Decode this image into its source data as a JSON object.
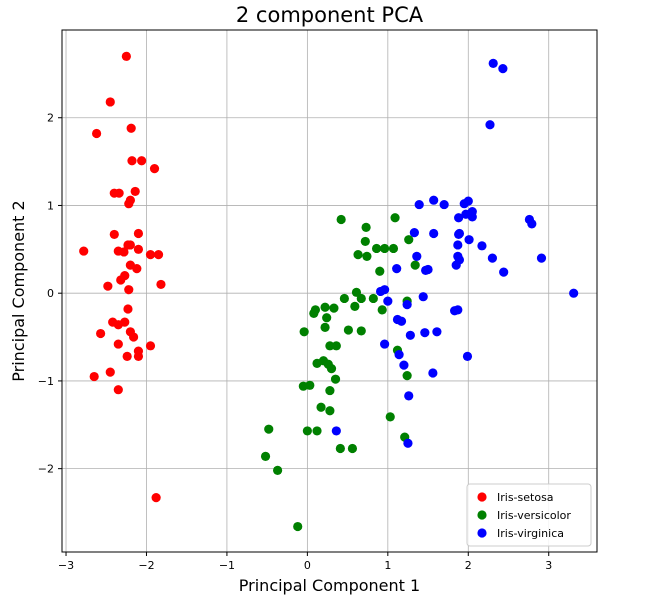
{
  "chart_data": {
    "type": "scatter",
    "title": "2 component PCA",
    "xlabel": "Principal Component 1",
    "ylabel": "Principal Component 2",
    "xlim": [
      -3.05,
      3.6
    ],
    "ylim": [
      -2.95,
      3.0
    ],
    "xticks": [
      -3,
      -2,
      -1,
      0,
      1,
      2,
      3
    ],
    "yticks": [
      -2,
      -1,
      0,
      1,
      2
    ],
    "grid": true,
    "legend_position": "lower-right",
    "series": [
      {
        "name": "Iris-setosa",
        "color": "#ff0000",
        "points": [
          [
            -2.25,
            2.7
          ],
          [
            -2.45,
            2.18
          ],
          [
            -2.62,
            1.82
          ],
          [
            -2.19,
            1.88
          ],
          [
            -2.18,
            1.51
          ],
          [
            -2.06,
            1.51
          ],
          [
            -1.9,
            1.42
          ],
          [
            -2.4,
            1.14
          ],
          [
            -2.34,
            1.14
          ],
          [
            -2.14,
            1.16
          ],
          [
            -2.2,
            1.06
          ],
          [
            -2.22,
            1.02
          ],
          [
            -2.1,
            0.68
          ],
          [
            -2.4,
            0.67
          ],
          [
            -2.23,
            0.55
          ],
          [
            -2.2,
            0.55
          ],
          [
            -2.1,
            0.5
          ],
          [
            -2.28,
            0.47
          ],
          [
            -2.35,
            0.48
          ],
          [
            -1.95,
            0.44
          ],
          [
            -1.85,
            0.44
          ],
          [
            -2.78,
            0.48
          ],
          [
            -2.2,
            0.32
          ],
          [
            -2.12,
            0.28
          ],
          [
            -2.27,
            0.2
          ],
          [
            -2.32,
            0.15
          ],
          [
            -2.48,
            0.08
          ],
          [
            -2.22,
            0.04
          ],
          [
            -1.82,
            0.1
          ],
          [
            -2.23,
            -0.18
          ],
          [
            -2.42,
            -0.33
          ],
          [
            -2.35,
            -0.36
          ],
          [
            -2.27,
            -0.33
          ],
          [
            -2.57,
            -0.46
          ],
          [
            -2.2,
            -0.44
          ],
          [
            -2.16,
            -0.5
          ],
          [
            -2.35,
            -0.58
          ],
          [
            -2.1,
            -0.66
          ],
          [
            -1.95,
            -0.6
          ],
          [
            -2.1,
            -0.72
          ],
          [
            -2.24,
            -0.72
          ],
          [
            -2.65,
            -0.95
          ],
          [
            -2.45,
            -0.9
          ],
          [
            -2.35,
            -1.1
          ],
          [
            -1.88,
            -2.33
          ]
        ]
      },
      {
        "name": "Iris-versicolor",
        "color": "#008000",
        "points": [
          [
            0.42,
            0.84
          ],
          [
            0.73,
            0.75
          ],
          [
            1.09,
            0.86
          ],
          [
            1.26,
            0.61
          ],
          [
            0.72,
            0.59
          ],
          [
            0.96,
            0.51
          ],
          [
            0.86,
            0.51
          ],
          [
            1.07,
            0.51
          ],
          [
            0.63,
            0.44
          ],
          [
            0.74,
            0.42
          ],
          [
            1.34,
            0.32
          ],
          [
            0.9,
            0.25
          ],
          [
            0.61,
            0.01
          ],
          [
            0.46,
            -0.06
          ],
          [
            0.67,
            -0.06
          ],
          [
            0.82,
            -0.06
          ],
          [
            0.22,
            -0.16
          ],
          [
            0.1,
            -0.19
          ],
          [
            0.33,
            -0.17
          ],
          [
            0.08,
            -0.23
          ],
          [
            0.24,
            -0.28
          ],
          [
            0.59,
            -0.15
          ],
          [
            1.24,
            -0.09
          ],
          [
            0.93,
            -0.19
          ],
          [
            0.22,
            -0.39
          ],
          [
            0.51,
            -0.42
          ],
          [
            0.67,
            -0.43
          ],
          [
            -0.04,
            -0.44
          ],
          [
            1.12,
            -0.65
          ],
          [
            0.36,
            -0.6
          ],
          [
            0.28,
            -0.6
          ],
          [
            0.2,
            -0.77
          ],
          [
            0.12,
            -0.8
          ],
          [
            0.26,
            -0.81
          ],
          [
            0.3,
            -0.86
          ],
          [
            1.24,
            -0.94
          ],
          [
            -0.05,
            -1.06
          ],
          [
            0.03,
            -1.05
          ],
          [
            0.35,
            -0.98
          ],
          [
            0.28,
            -1.11
          ],
          [
            0.17,
            -1.3
          ],
          [
            0.28,
            -1.34
          ],
          [
            1.03,
            -1.41
          ],
          [
            -0.48,
            -1.55
          ],
          [
            0.0,
            -1.57
          ],
          [
            0.12,
            -1.57
          ],
          [
            1.21,
            -1.64
          ],
          [
            -0.52,
            -1.86
          ],
          [
            0.41,
            -1.77
          ],
          [
            0.56,
            -1.77
          ],
          [
            -0.37,
            -2.02
          ],
          [
            -0.12,
            -2.66
          ]
        ]
      },
      {
        "name": "Iris-virginica",
        "color": "#0000ff",
        "points": [
          [
            2.31,
            2.62
          ],
          [
            2.43,
            2.56
          ],
          [
            2.27,
            1.92
          ],
          [
            1.57,
            1.06
          ],
          [
            1.7,
            1.01
          ],
          [
            1.39,
            1.01
          ],
          [
            2.0,
            1.05
          ],
          [
            1.95,
            1.02
          ],
          [
            2.05,
            0.93
          ],
          [
            2.05,
            0.87
          ],
          [
            1.88,
            0.86
          ],
          [
            1.97,
            0.9
          ],
          [
            1.33,
            0.69
          ],
          [
            1.89,
            0.68
          ],
          [
            1.88,
            0.67
          ],
          [
            1.57,
            0.68
          ],
          [
            2.01,
            0.61
          ],
          [
            2.17,
            0.54
          ],
          [
            1.87,
            0.55
          ],
          [
            2.79,
            0.79
          ],
          [
            2.76,
            0.84
          ],
          [
            1.36,
            0.42
          ],
          [
            1.87,
            0.42
          ],
          [
            1.89,
            0.38
          ],
          [
            2.3,
            0.4
          ],
          [
            2.91,
            0.4
          ],
          [
            1.85,
            0.32
          ],
          [
            1.47,
            0.26
          ],
          [
            1.5,
            0.27
          ],
          [
            2.44,
            0.24
          ],
          [
            1.11,
            0.28
          ],
          [
            0.96,
            0.04
          ],
          [
            0.91,
            0.02
          ],
          [
            1.44,
            -0.04
          ],
          [
            1.0,
            -0.09
          ],
          [
            3.31,
            0.0
          ],
          [
            1.24,
            -0.13
          ],
          [
            1.12,
            -0.3
          ],
          [
            1.17,
            -0.32
          ],
          [
            1.83,
            -0.2
          ],
          [
            1.87,
            -0.19
          ],
          [
            1.28,
            -0.48
          ],
          [
            1.46,
            -0.45
          ],
          [
            1.61,
            -0.44
          ],
          [
            0.96,
            -0.58
          ],
          [
            1.14,
            -0.7
          ],
          [
            1.99,
            -0.72
          ],
          [
            1.2,
            -0.82
          ],
          [
            1.56,
            -0.91
          ],
          [
            1.26,
            -1.17
          ],
          [
            0.36,
            -1.57
          ],
          [
            1.25,
            -1.71
          ]
        ]
      }
    ]
  }
}
